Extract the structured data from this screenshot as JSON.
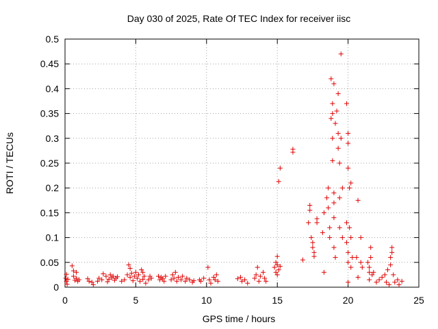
{
  "chart_data": {
    "type": "scatter",
    "title": "Day 030 of 2025, Rate Of TEC Index for receiver iisc",
    "xlabel": "GPS time / hours",
    "ylabel": "ROTI / TECUs",
    "xlim": [
      0,
      25
    ],
    "ylim": [
      0,
      0.5
    ],
    "x_ticks": [
      0,
      5,
      10,
      15,
      20,
      25
    ],
    "x_tick_labels": [
      "0",
      "5",
      "10",
      "15",
      "20",
      "25"
    ],
    "y_ticks": [
      0,
      0.05,
      0.1,
      0.15,
      0.2,
      0.25,
      0.3,
      0.35,
      0.4,
      0.45,
      0.5
    ],
    "y_tick_labels": [
      "0",
      "0.05",
      "0.1",
      "0.15",
      "0.2",
      "0.25",
      "0.3",
      "0.35",
      "0.4",
      "0.45",
      "0.5"
    ],
    "grid": true,
    "marker": "+",
    "color": "#e00000",
    "series": [
      {
        "name": "ROTI",
        "points": [
          [
            0.05,
            0.018
          ],
          [
            0.1,
            0.026
          ],
          [
            0.1,
            0.012
          ],
          [
            0.15,
            0.006
          ],
          [
            0.2,
            0.016
          ],
          [
            0.5,
            0.043
          ],
          [
            0.6,
            0.033
          ],
          [
            0.6,
            0.022
          ],
          [
            0.7,
            0.014
          ],
          [
            0.8,
            0.03
          ],
          [
            0.8,
            0.018
          ],
          [
            0.9,
            0.012
          ],
          [
            1.0,
            0.015
          ],
          [
            1.6,
            0.017
          ],
          [
            1.7,
            0.012
          ],
          [
            1.9,
            0.01
          ],
          [
            2.0,
            0.005
          ],
          [
            2.3,
            0.012
          ],
          [
            2.4,
            0.018
          ],
          [
            2.6,
            0.015
          ],
          [
            2.7,
            0.027
          ],
          [
            2.9,
            0.022
          ],
          [
            3.0,
            0.011
          ],
          [
            3.1,
            0.016
          ],
          [
            3.2,
            0.025
          ],
          [
            3.3,
            0.019
          ],
          [
            3.4,
            0.022
          ],
          [
            3.5,
            0.014
          ],
          [
            3.6,
            0.018
          ],
          [
            3.7,
            0.021
          ],
          [
            4.0,
            0.012
          ],
          [
            4.2,
            0.015
          ],
          [
            4.4,
            0.025
          ],
          [
            4.5,
            0.045
          ],
          [
            4.6,
            0.038
          ],
          [
            4.6,
            0.02
          ],
          [
            4.7,
            0.028
          ],
          [
            4.8,
            0.013
          ],
          [
            4.9,
            0.022
          ],
          [
            5.0,
            0.03
          ],
          [
            5.1,
            0.018
          ],
          [
            5.2,
            0.025
          ],
          [
            5.3,
            0.012
          ],
          [
            5.4,
            0.035
          ],
          [
            5.5,
            0.03
          ],
          [
            5.5,
            0.016
          ],
          [
            5.6,
            0.022
          ],
          [
            5.7,
            0.008
          ],
          [
            5.9,
            0.015
          ],
          [
            6.0,
            0.022
          ],
          [
            6.1,
            0.018
          ],
          [
            6.6,
            0.022
          ],
          [
            6.7,
            0.015
          ],
          [
            6.8,
            0.02
          ],
          [
            6.9,
            0.017
          ],
          [
            7.0,
            0.012
          ],
          [
            7.1,
            0.022
          ],
          [
            7.5,
            0.015
          ],
          [
            7.6,
            0.025
          ],
          [
            7.7,
            0.018
          ],
          [
            7.8,
            0.03
          ],
          [
            7.9,
            0.012
          ],
          [
            8.0,
            0.02
          ],
          [
            8.2,
            0.015
          ],
          [
            8.3,
            0.022
          ],
          [
            8.5,
            0.012
          ],
          [
            8.6,
            0.018
          ],
          [
            8.8,
            0.015
          ],
          [
            9.0,
            0.01
          ],
          [
            9.1,
            0.013
          ],
          [
            9.5,
            0.015
          ],
          [
            9.6,
            0.012
          ],
          [
            9.8,
            0.018
          ],
          [
            10.1,
            0.04
          ],
          [
            10.2,
            0.015
          ],
          [
            10.3,
            0.008
          ],
          [
            10.5,
            0.02
          ],
          [
            10.6,
            0.015
          ],
          [
            10.7,
            0.025
          ],
          [
            10.8,
            0.012
          ],
          [
            12.2,
            0.017
          ],
          [
            12.4,
            0.02
          ],
          [
            12.5,
            0.012
          ],
          [
            12.7,
            0.015
          ],
          [
            12.9,
            0.008
          ],
          [
            13.4,
            0.018
          ],
          [
            13.5,
            0.025
          ],
          [
            13.6,
            0.04
          ],
          [
            13.7,
            0.012
          ],
          [
            13.8,
            0.022
          ],
          [
            14.0,
            0.03
          ],
          [
            14.1,
            0.018
          ],
          [
            14.2,
            0.012
          ],
          [
            14.8,
            0.04
          ],
          [
            14.9,
            0.05
          ],
          [
            14.9,
            0.03
          ],
          [
            15.0,
            0.062
          ],
          [
            15.0,
            0.045
          ],
          [
            15.0,
            0.025
          ],
          [
            15.1,
            0.035
          ],
          [
            15.1,
            0.213
          ],
          [
            15.2,
            0.24
          ],
          [
            15.2,
            0.042
          ],
          [
            16.1,
            0.278
          ],
          [
            16.1,
            0.272
          ],
          [
            16.8,
            0.055
          ],
          [
            17.2,
            0.13
          ],
          [
            17.3,
            0.165
          ],
          [
            17.3,
            0.155
          ],
          [
            17.4,
            0.1
          ],
          [
            17.5,
            0.09
          ],
          [
            17.5,
            0.08
          ],
          [
            17.6,
            0.07
          ],
          [
            17.6,
            0.062
          ],
          [
            17.8,
            0.138
          ],
          [
            17.8,
            0.13
          ],
          [
            18.2,
            0.11
          ],
          [
            18.3,
            0.15
          ],
          [
            18.3,
            0.03
          ],
          [
            18.5,
            0.18
          ],
          [
            18.6,
            0.2
          ],
          [
            18.6,
            0.16
          ],
          [
            18.7,
            0.12
          ],
          [
            18.7,
            0.1
          ],
          [
            18.8,
            0.34
          ],
          [
            18.8,
            0.42
          ],
          [
            18.9,
            0.37
          ],
          [
            18.9,
            0.35
          ],
          [
            18.9,
            0.3
          ],
          [
            18.9,
            0.255
          ],
          [
            19.0,
            0.41
          ],
          [
            19.0,
            0.19
          ],
          [
            19.0,
            0.17
          ],
          [
            19.0,
            0.14
          ],
          [
            19.0,
            0.08
          ],
          [
            19.1,
            0.33
          ],
          [
            19.1,
            0.06
          ],
          [
            19.2,
            0.355
          ],
          [
            19.3,
            0.39
          ],
          [
            19.3,
            0.31
          ],
          [
            19.3,
            0.28
          ],
          [
            19.4,
            0.25
          ],
          [
            19.4,
            0.18
          ],
          [
            19.4,
            0.12
          ],
          [
            19.5,
            0.47
          ],
          [
            19.5,
            0.3
          ],
          [
            19.6,
            0.2
          ],
          [
            19.6,
            0.1
          ],
          [
            19.9,
            0.37
          ],
          [
            19.9,
            0.13
          ],
          [
            19.9,
            0.09
          ],
          [
            20.0,
            0.31
          ],
          [
            20.0,
            0.29
          ],
          [
            20.0,
            0.24
          ],
          [
            20.0,
            0.07
          ],
          [
            20.0,
            0.05
          ],
          [
            20.0,
            0.01
          ],
          [
            20.1,
            0.2
          ],
          [
            20.1,
            0.12
          ],
          [
            20.2,
            0.21
          ],
          [
            20.2,
            0.1
          ],
          [
            20.2,
            0.04
          ],
          [
            20.3,
            0.06
          ],
          [
            20.6,
            0.06
          ],
          [
            20.7,
            0.175
          ],
          [
            20.7,
            0.02
          ],
          [
            20.9,
            0.1
          ],
          [
            20.9,
            0.05
          ],
          [
            21.0,
            0.04
          ],
          [
            21.4,
            0.05
          ],
          [
            21.5,
            0.04
          ],
          [
            21.5,
            0.03
          ],
          [
            21.5,
            0.015
          ],
          [
            21.6,
            0.08
          ],
          [
            21.6,
            0.06
          ],
          [
            21.7,
            0.025
          ],
          [
            21.8,
            0.03
          ],
          [
            22.0,
            0.01
          ],
          [
            22.2,
            0.015
          ],
          [
            22.4,
            0.02
          ],
          [
            22.6,
            0.025
          ],
          [
            22.7,
            0.01
          ],
          [
            22.8,
            0.035
          ],
          [
            22.9,
            0.005
          ],
          [
            23.0,
            0.06
          ],
          [
            23.0,
            0.045
          ],
          [
            23.1,
            0.08
          ],
          [
            23.1,
            0.07
          ],
          [
            23.2,
            0.025
          ],
          [
            23.3,
            0.01
          ],
          [
            23.5,
            0.015
          ],
          [
            23.6,
            0.005
          ],
          [
            23.8,
            0.012
          ]
        ]
      }
    ]
  }
}
